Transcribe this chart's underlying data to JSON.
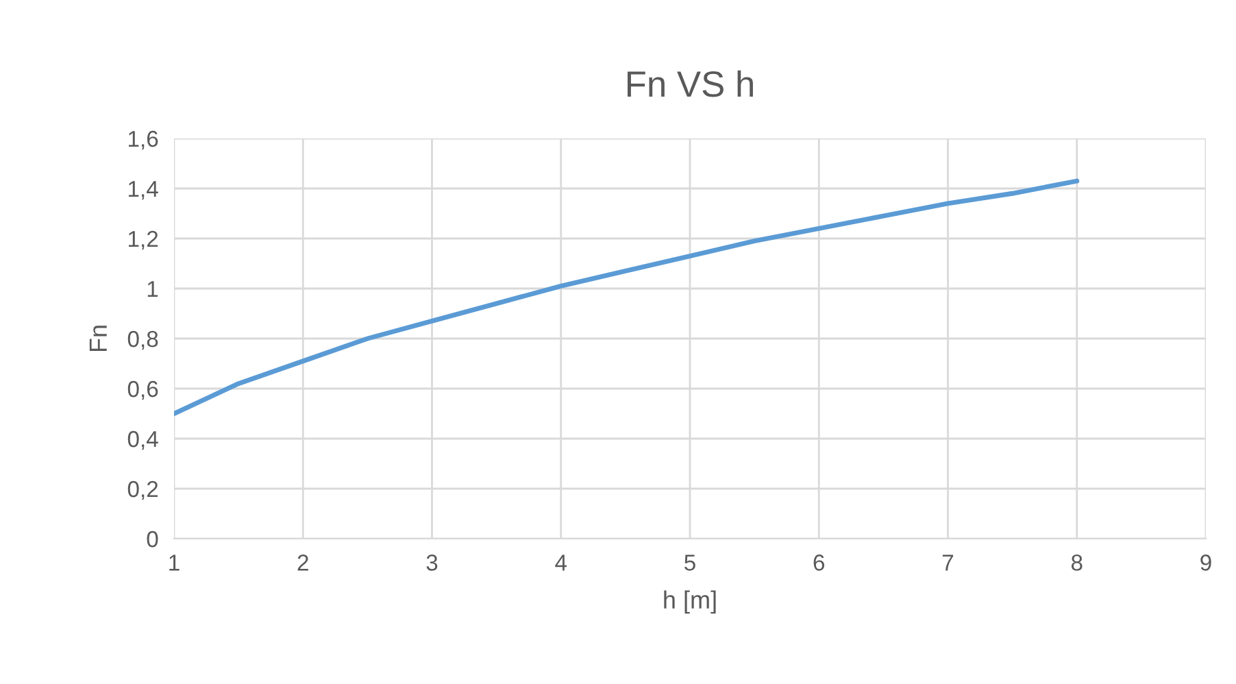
{
  "chart_data": {
    "type": "line",
    "title": "Fn VS h",
    "xlabel": "h [m]",
    "ylabel": "Fn",
    "x": [
      1,
      1.5,
      2,
      2.5,
      3,
      3.5,
      4,
      4.5,
      5,
      5.5,
      6,
      6.5,
      7,
      7.5,
      8
    ],
    "series": [
      {
        "color": "#5b9bd5",
        "values": [
          0.5,
          0.62,
          0.71,
          0.8,
          0.87,
          0.94,
          1.01,
          1.07,
          1.13,
          1.19,
          1.24,
          1.29,
          1.34,
          1.38,
          1.43
        ]
      }
    ],
    "xlim": [
      1,
      9
    ],
    "xticks": [
      1,
      2,
      3,
      4,
      5,
      6,
      7,
      8,
      9
    ],
    "ylim": [
      0,
      1.6
    ],
    "yticks": [
      0,
      {
        "value": 0.2,
        "label": "0,2"
      },
      {
        "value": 0.4,
        "label": "0,4"
      },
      {
        "value": 0.6,
        "label": "0,6"
      },
      {
        "value": 0.8,
        "label": "0,8"
      },
      1,
      {
        "value": 1.2,
        "label": "1,2"
      },
      {
        "value": 1.4,
        "label": "1,4"
      },
      {
        "value": 1.6,
        "label": "1,6"
      }
    ],
    "grid": true,
    "marker": "none",
    "line_style": "solid"
  }
}
